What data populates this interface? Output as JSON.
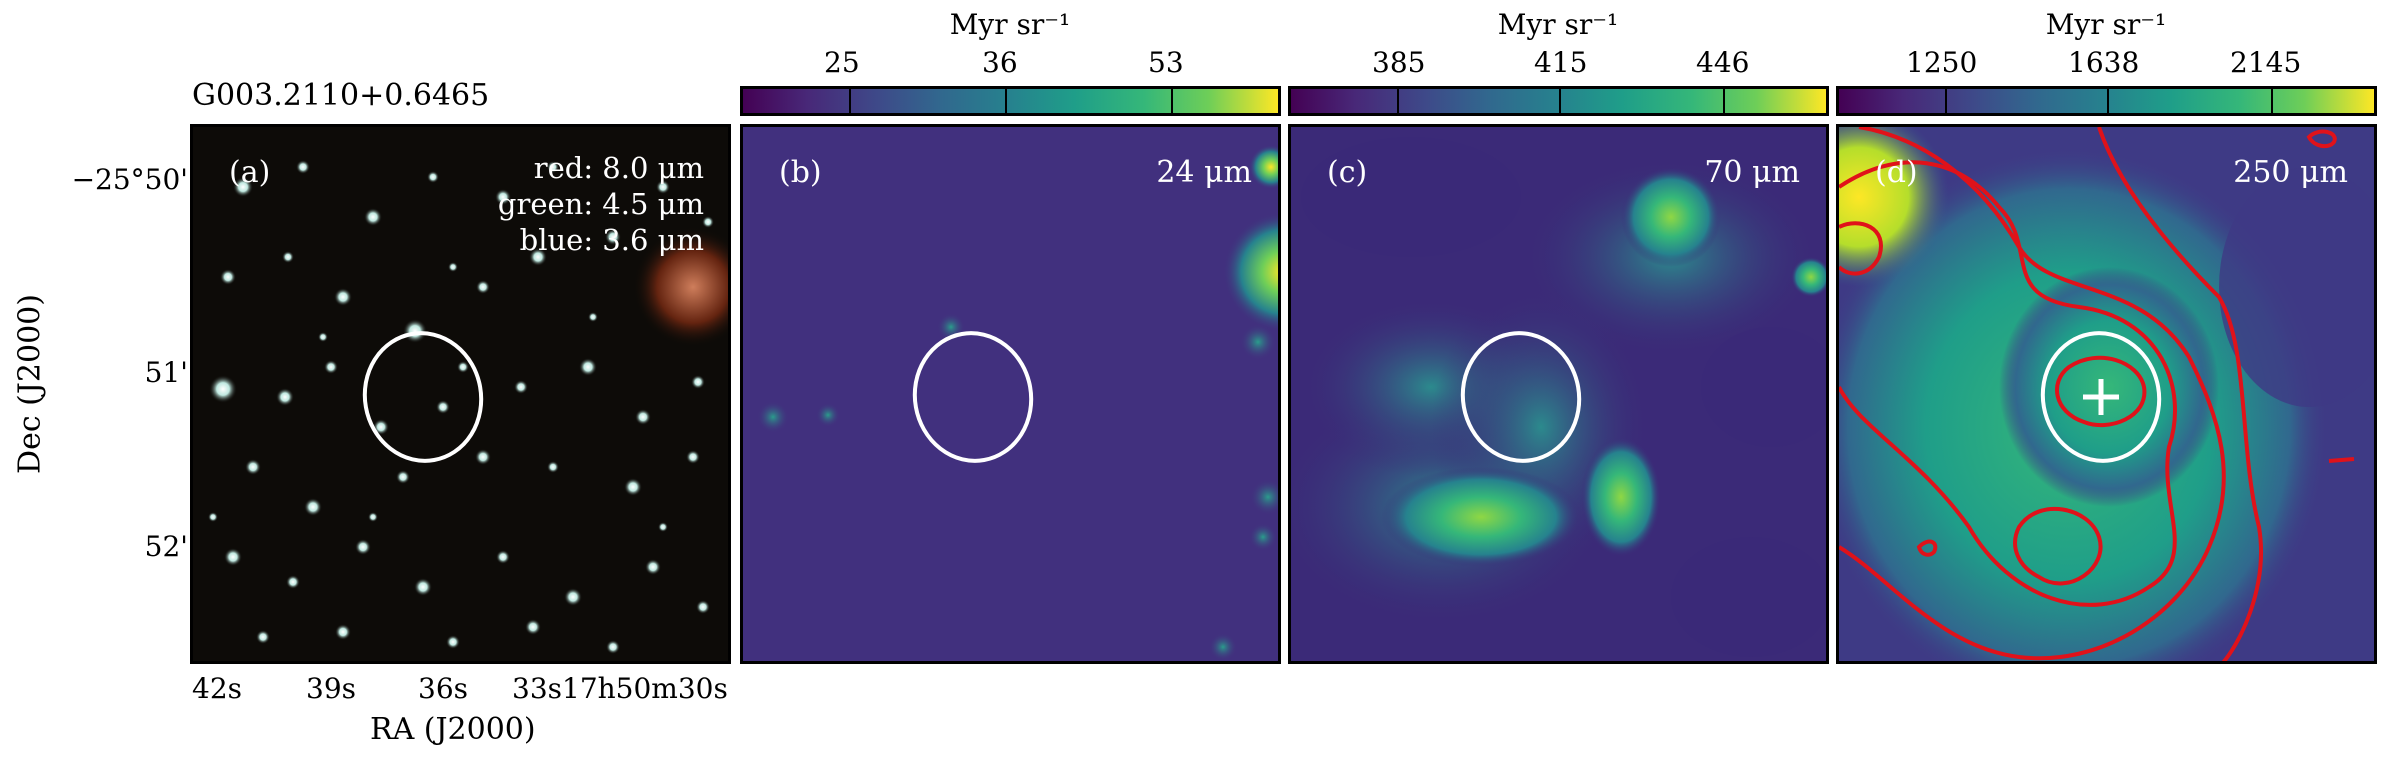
{
  "figure": {
    "source_name": "G003.2110+0.6465",
    "y_axis_label": "Dec (J2000)",
    "x_axis_label": "RA (J2000)",
    "dec_ticks": [
      "−25°50'",
      "51'",
      "52'"
    ],
    "ra_ticks": [
      "42s",
      "39s",
      "36s",
      "33s",
      "17h50m30s"
    ]
  },
  "panels": [
    {
      "id": "a",
      "label": "(a)",
      "legend": [
        "red: 8.0 μm",
        "green: 4.5 μm",
        "blue: 3.6 μm"
      ]
    },
    {
      "id": "b",
      "label": "(b)",
      "wavelength": "24 μm",
      "colorbar": {
        "unit": "Myr sr⁻¹",
        "ticks": [
          "25",
          "36",
          "53"
        ]
      }
    },
    {
      "id": "c",
      "label": "(c)",
      "wavelength": "70 μm",
      "colorbar": {
        "unit": "Myr sr⁻¹",
        "ticks": [
          "385",
          "415",
          "446"
        ]
      }
    },
    {
      "id": "d",
      "label": "(d)",
      "wavelength": "250 μm",
      "colorbar": {
        "unit": "Myr sr⁻¹",
        "ticks": [
          "1250",
          "1638",
          "2145"
        ]
      }
    }
  ],
  "colors": {
    "aperture": "#ffffff",
    "contours": "#e0121a",
    "colormap": "viridis"
  }
}
